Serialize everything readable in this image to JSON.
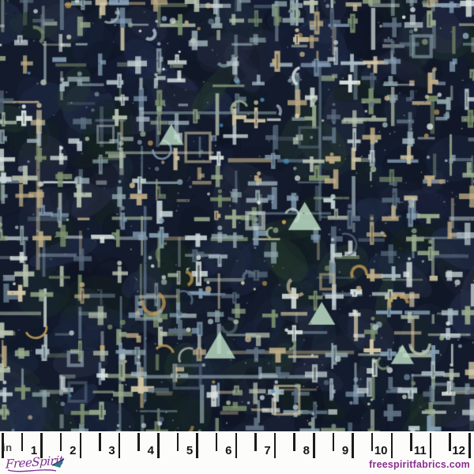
{
  "image": {
    "type": "fabric-swatch-product-photo",
    "description": "Dark navy abstract batik-style fabric with a dense grid of pale crosses, bars, dots and arcs, shown above a 12 inch ruler"
  },
  "ruler": {
    "unit": "in",
    "numbers": [
      "1",
      "2",
      "3",
      "4",
      "5",
      "6",
      "7",
      "8",
      "9",
      "10",
      "11",
      "12"
    ],
    "max_inches": 12,
    "tick_color": "#1b1b1b",
    "background": "#fcfcfb"
  },
  "branding": {
    "logo_text": "FreeSpirit",
    "website": "freespiritfabrics.com",
    "brand_purple": "#8b2f8f",
    "logo_purple": "#7a3192",
    "flag_teal": "#2b7d93"
  },
  "fabric": {
    "background": "#121a2b",
    "mottle": [
      "#0d1220",
      "#1a2340",
      "#253250",
      "#15241e",
      "#25392f",
      "#0f1626",
      "#2b3147",
      "#1d2b3a"
    ],
    "strokes": [
      "#a9bcc4",
      "#c6d4d6",
      "#d4c8a5",
      "#c0ae86",
      "#9aad8d",
      "#7e9370",
      "#5d7081",
      "#8fa6aa",
      "#b9c4b0",
      "#dde6e2",
      "#86a0b5"
    ],
    "gold": "#c79f58",
    "blue": "#4a90c4",
    "mint": "#bfe0c8",
    "speck_light": "#cdd8d4",
    "speck_dark": "#0a0f1c",
    "grid_spacing": 24.6,
    "seed": 1234
  }
}
